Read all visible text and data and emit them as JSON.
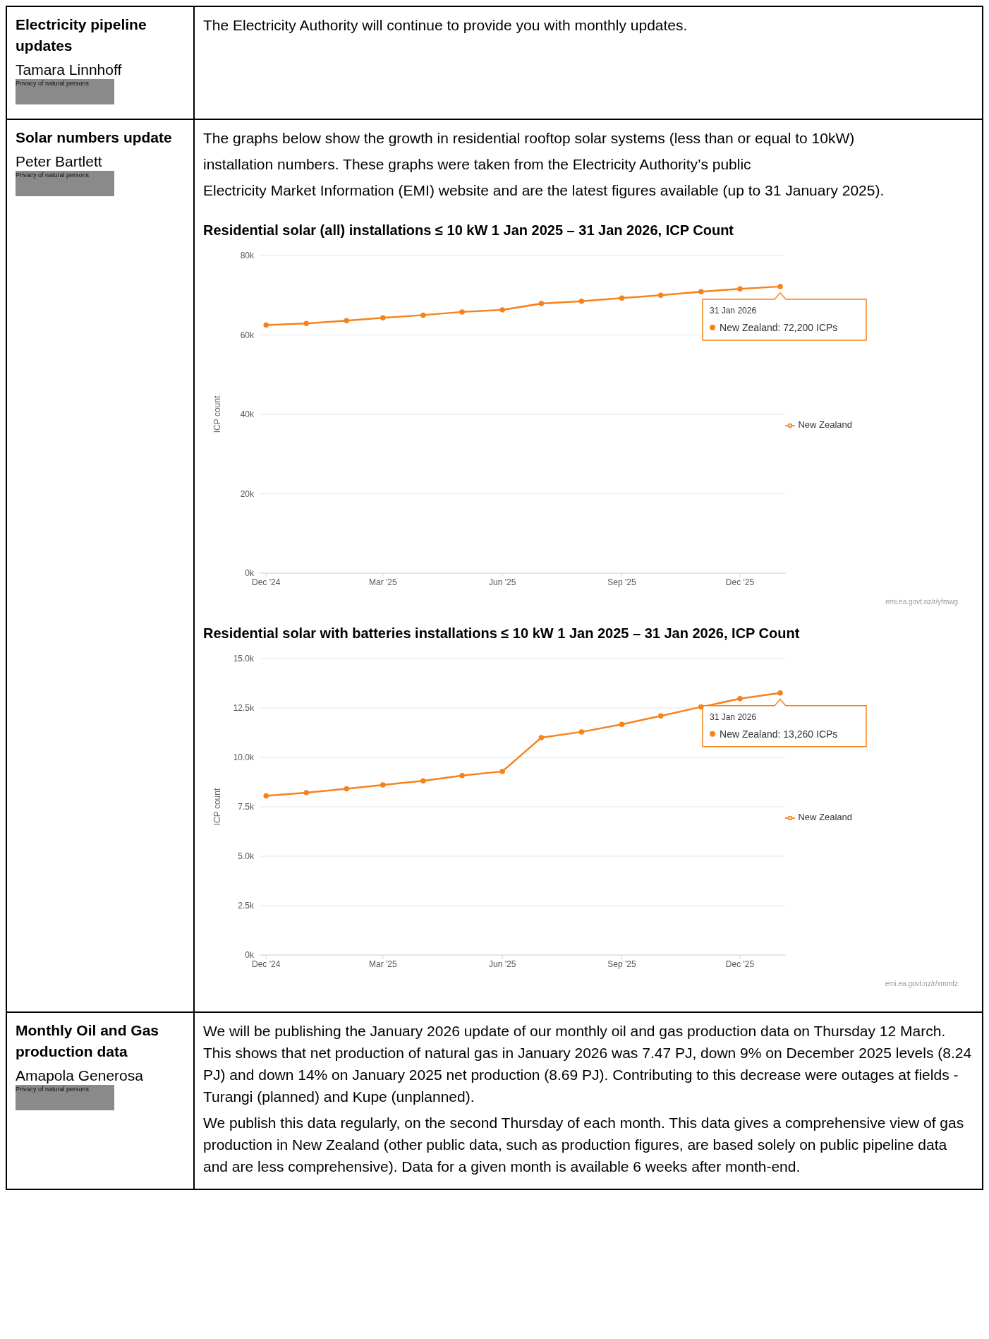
{
  "chart_data": [
    {
      "type": "line",
      "title": "Residential solar (all) installations ≤ 10 kW 1 Jan 2025 – 31 Jan 2026, ICP Count",
      "ylabel": "ICP count",
      "x": [
        "2024-12",
        "2025-01",
        "2025-02",
        "2025-03",
        "2025-04",
        "2025-05",
        "2025-06",
        "2025-07",
        "2025-08",
        "2025-09",
        "2025-10",
        "2025-11",
        "2025-12",
        "2026-01"
      ],
      "series": [
        {
          "name": "New Zealand",
          "color": "#f7821b",
          "values": [
            62500,
            62900,
            63600,
            64300,
            65000,
            65800,
            66300,
            67900,
            68500,
            69300,
            70000,
            70900,
            71600,
            72200
          ]
        }
      ],
      "xlim": [
        "2024-11-26",
        "2026-01-05"
      ],
      "xticks": [
        {
          "value": "2024-12",
          "label": "Dec '24"
        },
        {
          "value": "2025-03",
          "label": "Mar '25"
        },
        {
          "value": "2025-06",
          "label": "Jun '25"
        },
        {
          "value": "2025-09",
          "label": "Sep '25"
        },
        {
          "value": "2025-12",
          "label": "Dec '25"
        }
      ],
      "ylim": [
        0,
        80000
      ],
      "yticks": [
        {
          "value": 0,
          "label": "0k"
        },
        {
          "value": 20000,
          "label": "20k"
        },
        {
          "value": 40000,
          "label": "40k"
        },
        {
          "value": 60000,
          "label": "60k"
        },
        {
          "value": 80000,
          "label": "80k"
        }
      ],
      "grid": "y",
      "legend": "right",
      "marker": "circle",
      "annotations": [
        "Electricity pipeline updates",
        "Tamara Linnhoff",
        "Privacy of natural persons",
        "The Electricity Authority will continue to provide you with monthly updates.",
        "Solar numbers update",
        "Peter Bartlett",
        "Privacy of natural persons",
        "The graphs below show the growth in residential rooftop solar systems (less than or equal to 10kW)",
        "installation numbers. These graphs were taken from the Electricity Authority’s public",
        "Electricity Market Information (EMI) website and are the latest figures available (up to 31 January 2025).",
        {
          "text": "31 Jan 2026\nNew Zealand: 72,200 ICPs",
          "x": "2026-01",
          "y": 72200
        },
        "emi.ea.govt.nz/r/yfmwg"
      ]
    },
    {
      "type": "line",
      "title": "Residential solar with batteries installations ≤ 10 kW 1 Jan 2025 – 31 Jan 2026, ICP Count",
      "ylabel": "ICP count",
      "x": [
        "2024-12",
        "2025-01",
        "2025-02",
        "2025-03",
        "2025-04",
        "2025-05",
        "2025-06",
        "2025-07",
        "2025-08",
        "2025-09",
        "2025-10",
        "2025-11",
        "2025-12",
        "2026-01"
      ],
      "series": [
        {
          "name": "New Zealand",
          "color": "#f7821b",
          "values": [
            8050,
            8210,
            8410,
            8610,
            8810,
            9080,
            9290,
            11000,
            11290,
            11670,
            12100,
            12550,
            12970,
            13260
          ]
        }
      ],
      "xlim": [
        "2024-11-26",
        "2026-01-05"
      ],
      "xticks": [
        {
          "value": "2024-12",
          "label": "Dec '24"
        },
        {
          "value": "2025-03",
          "label": "Mar '25"
        },
        {
          "value": "2025-06",
          "label": "Jun '25"
        },
        {
          "value": "2025-09",
          "label": "Sep '25"
        },
        {
          "value": "2025-12",
          "label": "Dec '25"
        }
      ],
      "ylim": [
        0,
        15000
      ],
      "yticks": [
        {
          "value": 0,
          "label": "0k"
        },
        {
          "value": 2500,
          "label": "2.5k"
        },
        {
          "value": 5000,
          "label": "5.0k"
        },
        {
          "value": 7500,
          "label": "7.5k"
        },
        {
          "value": 10000,
          "label": "10.0k"
        },
        {
          "value": 12500,
          "label": "12.5k"
        },
        {
          "value": 15000,
          "label": "15.0k"
        }
      ],
      "grid": "y",
      "legend": "right",
      "marker": "circle",
      "annotations": [
        {
          "text": "31 Jan 2026\nNew Zealand: 13,260 ICPs",
          "x": "2026-01",
          "y": 13260
        },
        "emi.ea.govt.nz/r/xmmfz",
        "Monthly Oil and Gas production data",
        "Amapola Generosa",
        "Privacy of natural persons",
        "We will be publishing the January 2026 update of our monthly oil and gas production data on Thursday 12 March. This shows that net production of natural gas in January 2026 was 7.47 PJ, down 9% on December 2025 levels (8.24 PJ) and down 14% on January 2025 net production (8.69 PJ). Contributing to this decrease were outages at fields - Turangi (planned) and Kupe (unplanned).",
        "We publish this data regularly, on the second Thursday of each month. This data gives a comprehensive view of gas production in New Zealand (other public data, such as production figures, are based solely on public pipeline data and are less comprehensive). Data for a given month is available 6 weeks after month-end."
      ]
    }
  ]
}
